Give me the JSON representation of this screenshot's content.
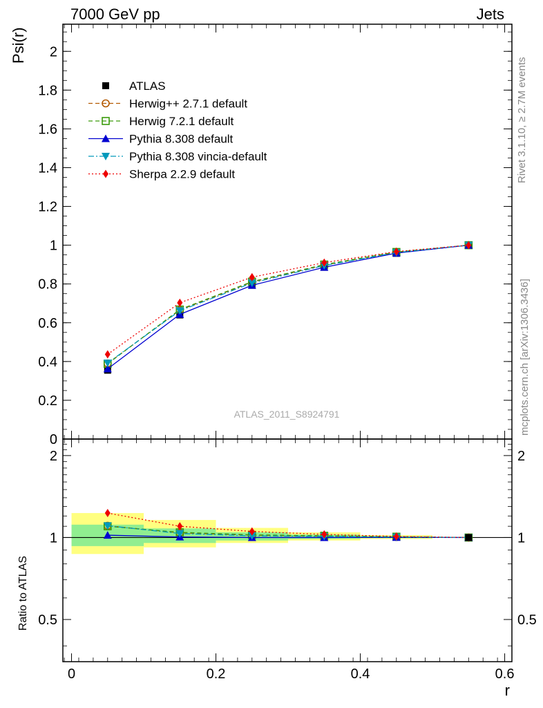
{
  "header": {
    "title_left": "7000 GeV pp",
    "title_right": "Jets"
  },
  "side_labels": {
    "rivet": "Rivet 3.1.10, ≥ 2.7M events",
    "mcplots": "mcplots.cern.ch [arXiv:1306.3436]"
  },
  "watermark": "ATLAS_2011_S8924791",
  "chart_data": [
    {
      "type": "line",
      "panel": "main",
      "ylabel": "Psi(r)",
      "xlim": [
        -0.012,
        0.61
      ],
      "ylim": [
        0,
        2.14
      ],
      "yticks": [
        0,
        0.2,
        0.4,
        0.6,
        0.8,
        1,
        1.2,
        1.4,
        1.6,
        1.8,
        2
      ],
      "ytick_labels": [
        "0",
        "0.2",
        "0.4",
        "0.6",
        "0.8",
        "1",
        "1.2",
        "1.4",
        "1.6",
        "1.8",
        "2"
      ],
      "legend_position": "top-left",
      "x": [
        0.05,
        0.15,
        0.25,
        0.35,
        0.45,
        0.55
      ],
      "series": [
        {
          "name": "ATLAS",
          "color": "#000000",
          "marker": "square-filled",
          "line": "none",
          "values": [
            0.355,
            0.64,
            0.793,
            0.886,
            0.958,
            1.0
          ]
        },
        {
          "name": "Herwig++ 2.7.1 default",
          "color": "#b35900",
          "marker": "circle-open",
          "line": "dashed",
          "values": [
            0.39,
            0.665,
            0.81,
            0.897,
            0.963,
            1.0
          ]
        },
        {
          "name": "Herwig 7.2.1 default",
          "color": "#3a9a0a",
          "marker": "square-open",
          "line": "dashed",
          "values": [
            0.388,
            0.668,
            0.812,
            0.9,
            0.965,
            1.0
          ]
        },
        {
          "name": "Pythia 8.308 default",
          "color": "#0000d0",
          "marker": "triangle-up-filled",
          "line": "solid",
          "values": [
            0.362,
            0.643,
            0.793,
            0.886,
            0.959,
            1.0
          ]
        },
        {
          "name": "Pythia 8.308 vincia-default",
          "color": "#0099bb",
          "marker": "triangle-down-filled",
          "line": "dashdot",
          "values": [
            0.392,
            0.662,
            0.805,
            0.895,
            0.962,
            1.0
          ]
        },
        {
          "name": "Sherpa 2.2.9 default",
          "color": "#ee0000",
          "marker": "diamond-filled",
          "line": "dotted",
          "values": [
            0.437,
            0.703,
            0.835,
            0.91,
            0.967,
            1.0
          ]
        }
      ]
    },
    {
      "type": "line",
      "panel": "ratio",
      "xlabel": "r",
      "ylabel": "Ratio to ATLAS",
      "xlim": [
        -0.012,
        0.61
      ],
      "xticks": [
        0,
        0.2,
        0.4,
        0.6
      ],
      "xtick_labels": [
        "0",
        "0.2",
        "0.4",
        "0.6"
      ],
      "ylim": [
        0.35,
        2.3
      ],
      "yticks": [
        0.5,
        1,
        2
      ],
      "ytick_labels": [
        "0.5",
        "1",
        "2"
      ],
      "bands": {
        "x_edges": [
          0.0,
          0.1,
          0.2,
          0.3,
          0.4,
          0.5,
          0.6
        ],
        "total_low": [
          0.87,
          0.92,
          0.955,
          0.975,
          0.988,
          1.0
        ],
        "total_high": [
          1.23,
          1.16,
          1.085,
          1.045,
          1.02,
          1.0
        ],
        "stat_low": [
          0.93,
          0.955,
          0.975,
          0.988,
          0.995,
          1.0
        ],
        "stat_high": [
          1.115,
          1.08,
          1.045,
          1.025,
          1.01,
          1.0
        ],
        "total_color": "#ffff80",
        "stat_color": "#90ee90"
      },
      "x": [
        0.05,
        0.15,
        0.25,
        0.35,
        0.45,
        0.55
      ],
      "series": [
        {
          "name": "Herwig++ 2.7.1 default",
          "color": "#b35900",
          "marker": "circle-open",
          "line": "dashed",
          "values": [
            1.105,
            1.04,
            1.02,
            1.012,
            1.005,
            1.0
          ]
        },
        {
          "name": "Herwig 7.2.1 default",
          "color": "#3a9a0a",
          "marker": "square-open",
          "line": "dashed",
          "values": [
            1.1,
            1.045,
            1.023,
            1.015,
            1.007,
            1.0
          ]
        },
        {
          "name": "Pythia 8.308 default",
          "color": "#0000d0",
          "marker": "triangle-up-filled",
          "line": "solid",
          "values": [
            1.02,
            1.005,
            1.0,
            1.0,
            1.001,
            1.0
          ]
        },
        {
          "name": "Pythia 8.308 vincia-default",
          "color": "#0099bb",
          "marker": "triangle-down-filled",
          "line": "dashdot",
          "values": [
            1.105,
            1.035,
            1.015,
            1.01,
            1.004,
            1.0
          ]
        },
        {
          "name": "Sherpa 2.2.9 default",
          "color": "#ee0000",
          "marker": "diamond-filled",
          "line": "dotted",
          "values": [
            1.23,
            1.1,
            1.053,
            1.027,
            1.009,
            1.0
          ]
        }
      ]
    }
  ]
}
